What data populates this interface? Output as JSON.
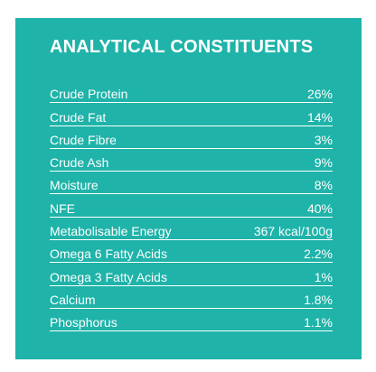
{
  "panel": {
    "title": "ANALYTICAL CONSTITUENTS",
    "background_color": "#1fb3a9",
    "text_color": "#ffffff",
    "rows": [
      {
        "label": "Crude Protein",
        "value": "26%"
      },
      {
        "label": "Crude Fat",
        "value": "14%"
      },
      {
        "label": "Crude Fibre",
        "value": "3%"
      },
      {
        "label": "Crude Ash",
        "value": "9%"
      },
      {
        "label": "Moisture",
        "value": "8%"
      },
      {
        "label": "NFE",
        "value": "40%"
      },
      {
        "label": "Metabolisable Energy",
        "value": "367 kcal/100g"
      },
      {
        "label": "Omega 6 Fatty Acids",
        "value": "2.2%"
      },
      {
        "label": "Omega 3 Fatty Acids",
        "value": "1%"
      },
      {
        "label": "Calcium",
        "value": "1.8%"
      },
      {
        "label": "Phosphorus",
        "value": "1.1%"
      }
    ]
  }
}
